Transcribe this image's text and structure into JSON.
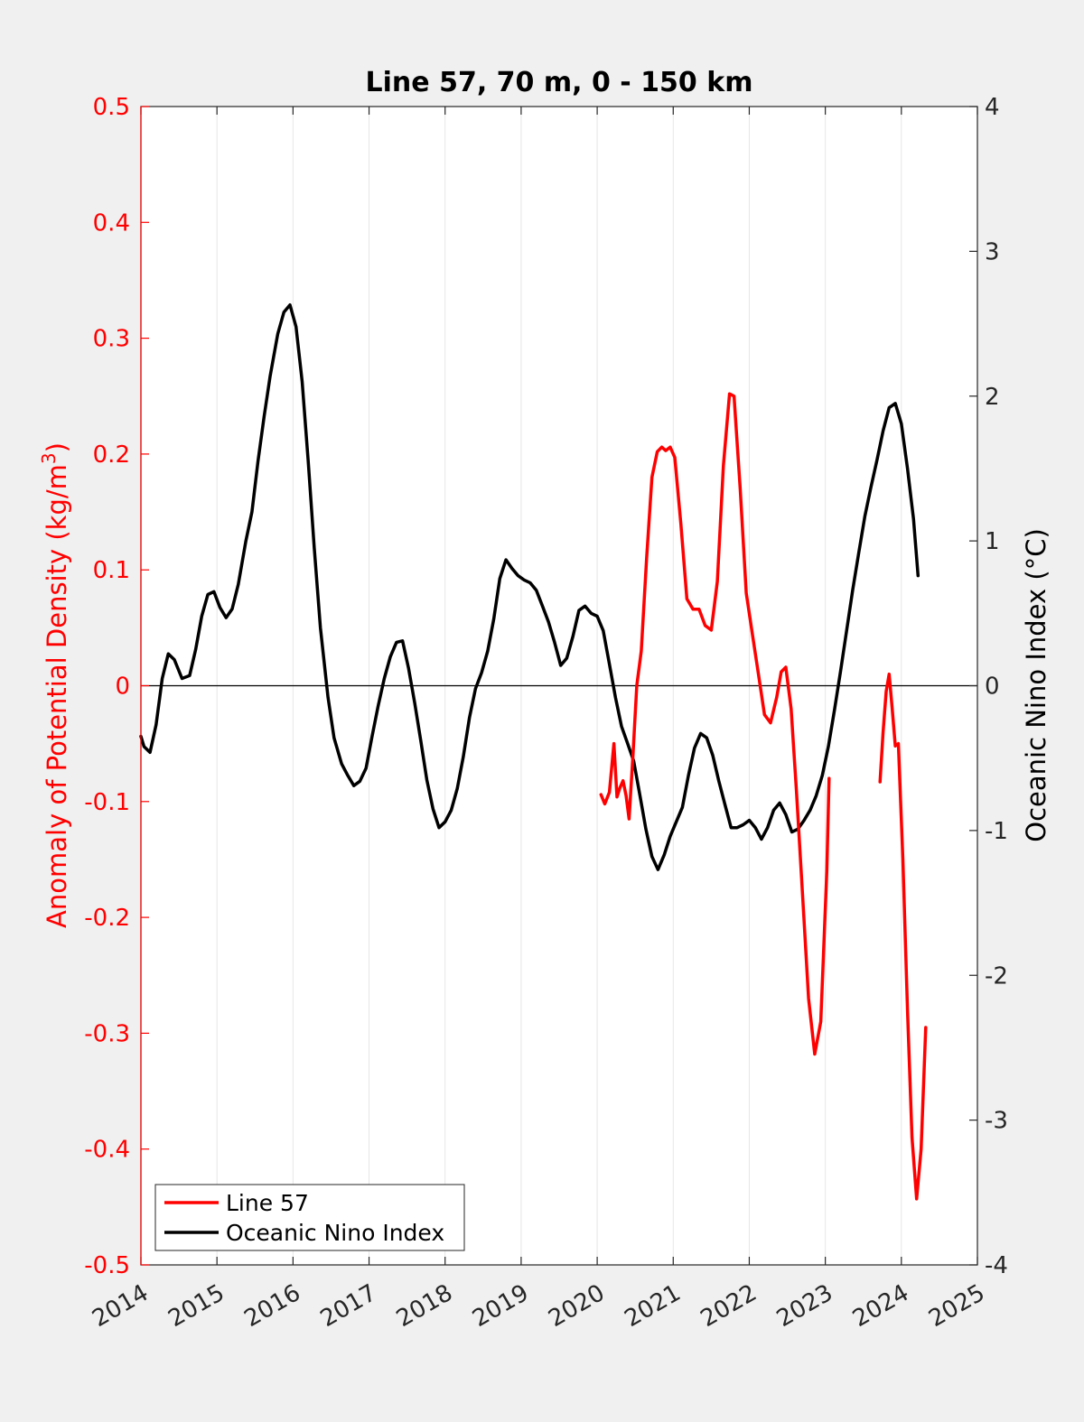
{
  "chart_data": {
    "type": "line",
    "title": "Line 57, 70 m, 0 - 150 km",
    "xlabel": "",
    "ylabel_left": "Anomaly of Potential Density (kg/m",
    "ylabel_left_sup": "3",
    "ylabel_left_close": ")",
    "ylabel_right": "Oceanic Nino Index (°C)",
    "xlim": [
      2014,
      2025
    ],
    "ylim_left": [
      -0.5,
      0.5
    ],
    "ylim_right": [
      -4,
      4
    ],
    "x_ticks": [
      "2014",
      "2015",
      "2016",
      "2017",
      "2018",
      "2019",
      "2020",
      "2021",
      "2022",
      "2023",
      "2024",
      "2025"
    ],
    "y_left_ticks": [
      "0.5",
      "0.4",
      "0.3",
      "0.2",
      "0.1",
      "0",
      "-0.1",
      "-0.2",
      "-0.3",
      "-0.4",
      "-0.5"
    ],
    "y_right_ticks": [
      "4",
      "3",
      "2",
      "1",
      "0",
      "-1",
      "-2",
      "-3",
      "-4"
    ],
    "grid": "vertical",
    "legend_position": "bottom-left",
    "colors": {
      "line57": "#ff0000",
      "oni": "#000000",
      "left_axis": "#ff0000"
    },
    "series": [
      {
        "name": "Line 57",
        "axis": "left",
        "segments": [
          [
            [
              2020.05,
              -0.094
            ],
            [
              2020.1,
              -0.102
            ],
            [
              2020.16,
              -0.092
            ],
            [
              2020.22,
              -0.05
            ],
            [
              2020.26,
              -0.096
            ],
            [
              2020.3,
              -0.088
            ],
            [
              2020.34,
              -0.082
            ],
            [
              2020.38,
              -0.095
            ],
            [
              2020.42,
              -0.115
            ],
            [
              2020.47,
              -0.06
            ],
            [
              2020.52,
              0.0
            ],
            [
              2020.58,
              0.03
            ],
            [
              2020.65,
              0.11
            ],
            [
              2020.72,
              0.18
            ],
            [
              2020.79,
              0.202
            ],
            [
              2020.85,
              0.206
            ],
            [
              2020.9,
              0.203
            ],
            [
              2020.96,
              0.206
            ],
            [
              2021.02,
              0.197
            ],
            [
              2021.1,
              0.14
            ],
            [
              2021.18,
              0.075
            ],
            [
              2021.26,
              0.066
            ],
            [
              2021.34,
              0.066
            ],
            [
              2021.42,
              0.052
            ],
            [
              2021.5,
              0.048
            ],
            [
              2021.58,
              0.09
            ],
            [
              2021.66,
              0.19
            ],
            [
              2021.74,
              0.252
            ],
            [
              2021.8,
              0.25
            ],
            [
              2021.88,
              0.17
            ],
            [
              2021.96,
              0.08
            ],
            [
              2022.04,
              0.045
            ],
            [
              2022.12,
              0.01
            ],
            [
              2022.2,
              -0.025
            ],
            [
              2022.28,
              -0.032
            ],
            [
              2022.36,
              -0.01
            ],
            [
              2022.42,
              0.012
            ],
            [
              2022.48,
              0.016
            ],
            [
              2022.55,
              -0.02
            ],
            [
              2022.62,
              -0.09
            ],
            [
              2022.7,
              -0.18
            ],
            [
              2022.78,
              -0.27
            ],
            [
              2022.86,
              -0.318
            ],
            [
              2022.94,
              -0.29
            ],
            [
              2023.02,
              -0.16
            ],
            [
              2023.05,
              -0.08
            ]
          ],
          [
            [
              2023.72,
              -0.083
            ],
            [
              2023.76,
              -0.04
            ],
            [
              2023.8,
              -0.005
            ],
            [
              2023.84,
              0.01
            ],
            [
              2023.88,
              -0.02
            ],
            [
              2023.92,
              -0.052
            ],
            [
              2023.96,
              -0.05
            ],
            [
              2024.02,
              -0.15
            ],
            [
              2024.08,
              -0.28
            ],
            [
              2024.14,
              -0.39
            ],
            [
              2024.2,
              -0.443
            ],
            [
              2024.26,
              -0.4
            ],
            [
              2024.32,
              -0.295
            ]
          ]
        ]
      },
      {
        "name": "Oceanic Nino Index",
        "axis": "right",
        "segments": [
          [
            [
              2014.0,
              -0.35
            ],
            [
              2014.04,
              -0.42
            ],
            [
              2014.12,
              -0.46
            ],
            [
              2014.2,
              -0.27
            ],
            [
              2014.28,
              0.05
            ],
            [
              2014.36,
              0.22
            ],
            [
              2014.44,
              0.18
            ],
            [
              2014.54,
              0.05
            ],
            [
              2014.64,
              0.07
            ],
            [
              2014.72,
              0.25
            ],
            [
              2014.8,
              0.48
            ],
            [
              2014.88,
              0.63
            ],
            [
              2014.96,
              0.65
            ],
            [
              2015.04,
              0.54
            ],
            [
              2015.12,
              0.47
            ],
            [
              2015.2,
              0.53
            ],
            [
              2015.28,
              0.7
            ],
            [
              2015.38,
              1.0
            ],
            [
              2015.46,
              1.2
            ],
            [
              2015.54,
              1.55
            ],
            [
              2015.62,
              1.86
            ],
            [
              2015.7,
              2.14
            ],
            [
              2015.8,
              2.43
            ],
            [
              2015.88,
              2.58
            ],
            [
              2015.96,
              2.63
            ],
            [
              2016.04,
              2.48
            ],
            [
              2016.12,
              2.1
            ],
            [
              2016.2,
              1.55
            ],
            [
              2016.28,
              0.95
            ],
            [
              2016.36,
              0.4
            ],
            [
              2016.46,
              -0.08
            ],
            [
              2016.54,
              -0.36
            ],
            [
              2016.64,
              -0.54
            ],
            [
              2016.72,
              -0.62
            ],
            [
              2016.8,
              -0.69
            ],
            [
              2016.88,
              -0.66
            ],
            [
              2016.96,
              -0.57
            ],
            [
              2017.04,
              -0.35
            ],
            [
              2017.12,
              -0.14
            ],
            [
              2017.2,
              0.05
            ],
            [
              2017.28,
              0.2
            ],
            [
              2017.36,
              0.3
            ],
            [
              2017.44,
              0.31
            ],
            [
              2017.52,
              0.12
            ],
            [
              2017.6,
              -0.12
            ],
            [
              2017.68,
              -0.38
            ],
            [
              2017.76,
              -0.65
            ],
            [
              2017.84,
              -0.85
            ],
            [
              2017.92,
              -0.98
            ],
            [
              2018.0,
              -0.94
            ],
            [
              2018.08,
              -0.86
            ],
            [
              2018.16,
              -0.71
            ],
            [
              2018.24,
              -0.49
            ],
            [
              2018.32,
              -0.22
            ],
            [
              2018.4,
              -0.02
            ],
            [
              2018.48,
              0.09
            ],
            [
              2018.56,
              0.24
            ],
            [
              2018.64,
              0.46
            ],
            [
              2018.72,
              0.74
            ],
            [
              2018.8,
              0.87
            ],
            [
              2018.88,
              0.81
            ],
            [
              2018.96,
              0.76
            ],
            [
              2019.04,
              0.73
            ],
            [
              2019.12,
              0.71
            ],
            [
              2019.2,
              0.66
            ],
            [
              2019.28,
              0.55
            ],
            [
              2019.36,
              0.44
            ],
            [
              2019.44,
              0.3
            ],
            [
              2019.52,
              0.14
            ],
            [
              2019.6,
              0.19
            ],
            [
              2019.68,
              0.34
            ],
            [
              2019.76,
              0.52
            ],
            [
              2019.84,
              0.55
            ],
            [
              2019.92,
              0.5
            ],
            [
              2020.0,
              0.48
            ],
            [
              2020.08,
              0.38
            ],
            [
              2020.16,
              0.15
            ],
            [
              2020.24,
              -0.08
            ],
            [
              2020.32,
              -0.28
            ],
            [
              2020.4,
              -0.4
            ],
            [
              2020.48,
              -0.52
            ],
            [
              2020.56,
              -0.75
            ],
            [
              2020.64,
              -0.99
            ],
            [
              2020.72,
              -1.18
            ],
            [
              2020.8,
              -1.27
            ],
            [
              2020.88,
              -1.17
            ],
            [
              2020.96,
              -1.04
            ],
            [
              2021.04,
              -0.94
            ],
            [
              2021.12,
              -0.84
            ],
            [
              2021.2,
              -0.62
            ],
            [
              2021.28,
              -0.43
            ],
            [
              2021.36,
              -0.33
            ],
            [
              2021.44,
              -0.36
            ],
            [
              2021.52,
              -0.48
            ],
            [
              2021.6,
              -0.66
            ],
            [
              2021.68,
              -0.82
            ],
            [
              2021.76,
              -0.98
            ],
            [
              2021.84,
              -0.98
            ],
            [
              2021.92,
              -0.96
            ],
            [
              2022.0,
              -0.93
            ],
            [
              2022.08,
              -0.98
            ],
            [
              2022.16,
              -1.06
            ],
            [
              2022.24,
              -0.98
            ],
            [
              2022.32,
              -0.86
            ],
            [
              2022.4,
              -0.81
            ],
            [
              2022.48,
              -0.89
            ],
            [
              2022.56,
              -1.01
            ],
            [
              2022.64,
              -0.99
            ],
            [
              2022.72,
              -0.93
            ],
            [
              2022.8,
              -0.86
            ],
            [
              2022.88,
              -0.76
            ],
            [
              2022.96,
              -0.62
            ],
            [
              2023.04,
              -0.42
            ],
            [
              2023.12,
              -0.17
            ],
            [
              2023.2,
              0.1
            ],
            [
              2023.28,
              0.38
            ],
            [
              2023.36,
              0.66
            ],
            [
              2023.44,
              0.92
            ],
            [
              2023.52,
              1.17
            ],
            [
              2023.6,
              1.37
            ],
            [
              2023.68,
              1.56
            ],
            [
              2023.76,
              1.76
            ],
            [
              2023.84,
              1.92
            ],
            [
              2023.92,
              1.95
            ],
            [
              2024.0,
              1.81
            ],
            [
              2024.08,
              1.5
            ],
            [
              2024.16,
              1.15
            ],
            [
              2024.22,
              0.76
            ]
          ]
        ]
      }
    ]
  }
}
